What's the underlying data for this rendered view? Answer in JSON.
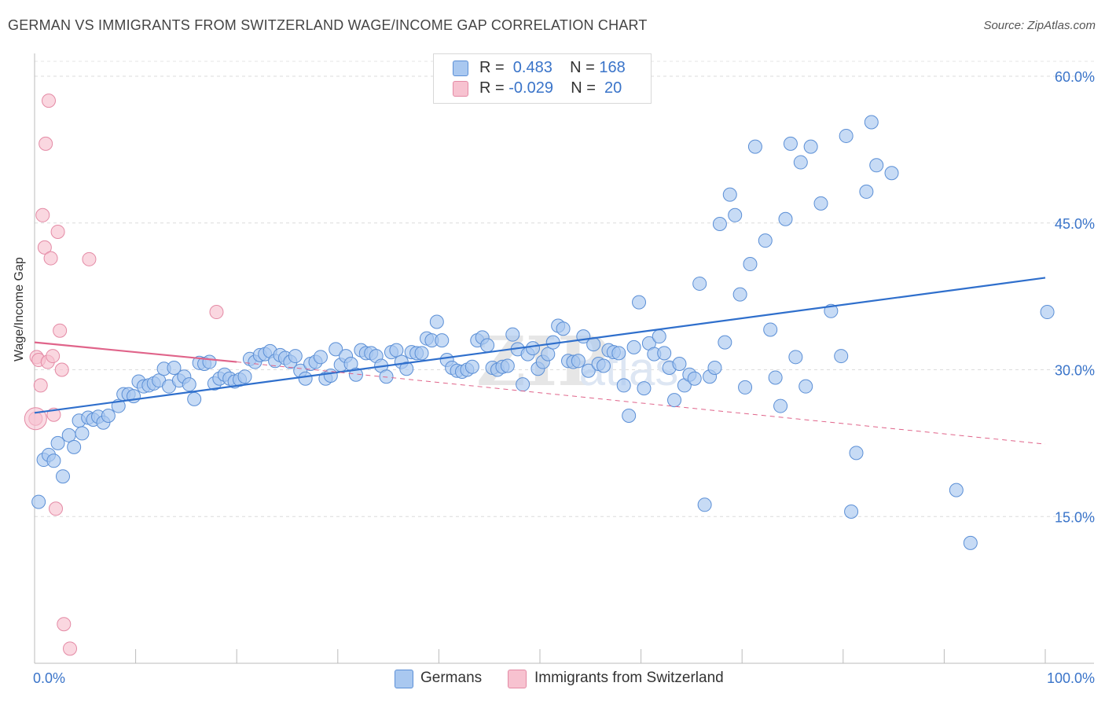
{
  "title": "GERMAN VS IMMIGRANTS FROM SWITZERLAND WAGE/INCOME GAP CORRELATION CHART",
  "source": "Source: ZipAtlas.com",
  "legend": {
    "rows": [
      {
        "r_label": "R = ",
        "r_value": " 0.483",
        "n_label": "N = ",
        "n_value": "168"
      },
      {
        "r_label": "R = ",
        "r_value": "-0.029",
        "n_label": "N = ",
        "n_value": " 20"
      }
    ]
  },
  "bottom_legend": [
    "Germans",
    "Immigrants from Switzerland"
  ],
  "colors": {
    "blue_fill": "#a9c8f0",
    "blue_stroke": "#5b8fd6",
    "blue_line": "#2f6fcc",
    "pink_fill": "#f7c2d0",
    "pink_stroke": "#e48aa5",
    "pink_line": "#e0648a",
    "axis_text": "#3a74c9"
  },
  "chart_data": {
    "type": "scatter",
    "title": "GERMAN VS IMMIGRANTS FROM SWITZERLAND WAGE/INCOME GAP CORRELATION CHART",
    "xlabel": "",
    "ylabel": "Wage/Income Gap",
    "xlim": [
      0,
      100
    ],
    "ylim": [
      0,
      60
    ],
    "x_tick_labels": [
      "0.0%",
      "100.0%"
    ],
    "y_ticks": [
      15,
      30,
      45,
      60
    ],
    "y_tick_labels": [
      "15.0%",
      "30.0%",
      "45.0%",
      "60.0%"
    ],
    "grid": true,
    "legend_position": "top-center",
    "series": [
      {
        "name": "Germans",
        "points": [
          [
            0.4,
            16.5
          ],
          [
            0.9,
            20.8
          ],
          [
            1.4,
            21.3
          ],
          [
            1.9,
            20.7
          ],
          [
            2.3,
            22.5
          ],
          [
            2.8,
            19.1
          ],
          [
            3.4,
            23.3
          ],
          [
            3.9,
            22.1
          ],
          [
            4.4,
            24.8
          ],
          [
            4.7,
            23.5
          ],
          [
            5.3,
            25.1
          ],
          [
            5.8,
            24.9
          ],
          [
            6.3,
            25.2
          ],
          [
            6.8,
            24.6
          ],
          [
            7.3,
            25.3
          ],
          [
            8.3,
            26.3
          ],
          [
            8.8,
            27.5
          ],
          [
            9.3,
            27.5
          ],
          [
            9.8,
            27.3
          ],
          [
            10.3,
            28.8
          ],
          [
            10.8,
            28.3
          ],
          [
            11.3,
            28.4
          ],
          [
            11.8,
            28.6
          ],
          [
            12.3,
            28.9
          ],
          [
            12.8,
            30.1
          ],
          [
            13.3,
            28.3
          ],
          [
            13.8,
            30.2
          ],
          [
            14.3,
            28.9
          ],
          [
            14.8,
            29.3
          ],
          [
            15.3,
            28.5
          ],
          [
            15.8,
            27.0
          ],
          [
            16.3,
            30.7
          ],
          [
            16.8,
            30.6
          ],
          [
            17.3,
            30.8
          ],
          [
            17.8,
            28.6
          ],
          [
            18.3,
            29.1
          ],
          [
            18.8,
            29.5
          ],
          [
            19.3,
            29.1
          ],
          [
            19.8,
            28.8
          ],
          [
            20.3,
            29.0
          ],
          [
            20.8,
            29.3
          ],
          [
            21.3,
            31.1
          ],
          [
            21.8,
            30.8
          ],
          [
            22.3,
            31.5
          ],
          [
            22.8,
            31.6
          ],
          [
            23.3,
            31.9
          ],
          [
            23.8,
            30.9
          ],
          [
            24.3,
            31.5
          ],
          [
            24.8,
            31.2
          ],
          [
            25.3,
            30.8
          ],
          [
            25.8,
            31.4
          ],
          [
            26.3,
            29.9
          ],
          [
            26.8,
            29.1
          ],
          [
            27.3,
            30.6
          ],
          [
            27.8,
            30.8
          ],
          [
            28.3,
            31.3
          ],
          [
            28.8,
            29.1
          ],
          [
            29.3,
            29.4
          ],
          [
            29.8,
            32.1
          ],
          [
            30.3,
            30.5
          ],
          [
            30.8,
            31.4
          ],
          [
            31.3,
            30.6
          ],
          [
            31.8,
            29.5
          ],
          [
            32.3,
            32.0
          ],
          [
            32.8,
            31.7
          ],
          [
            33.3,
            31.7
          ],
          [
            33.8,
            31.4
          ],
          [
            34.3,
            30.4
          ],
          [
            34.8,
            29.3
          ],
          [
            35.3,
            31.8
          ],
          [
            35.8,
            32.0
          ],
          [
            36.3,
            30.8
          ],
          [
            36.8,
            30.1
          ],
          [
            37.3,
            31.8
          ],
          [
            37.8,
            31.7
          ],
          [
            38.3,
            31.7
          ],
          [
            38.8,
            33.2
          ],
          [
            39.3,
            33.0
          ],
          [
            39.8,
            34.9
          ],
          [
            40.3,
            33.0
          ],
          [
            40.8,
            31.0
          ],
          [
            41.3,
            30.2
          ],
          [
            41.8,
            29.9
          ],
          [
            42.3,
            29.8
          ],
          [
            42.8,
            30.0
          ],
          [
            43.3,
            30.3
          ],
          [
            43.8,
            33.0
          ],
          [
            44.3,
            33.3
          ],
          [
            44.8,
            32.5
          ],
          [
            45.3,
            30.2
          ],
          [
            45.8,
            30.0
          ],
          [
            46.3,
            30.3
          ],
          [
            46.8,
            30.4
          ],
          [
            47.3,
            33.6
          ],
          [
            47.8,
            32.1
          ],
          [
            48.3,
            28.5
          ],
          [
            48.8,
            31.6
          ],
          [
            49.3,
            32.2
          ],
          [
            49.8,
            30.1
          ],
          [
            50.3,
            30.8
          ],
          [
            50.8,
            31.6
          ],
          [
            51.3,
            32.8
          ],
          [
            51.8,
            34.5
          ],
          [
            52.3,
            34.2
          ],
          [
            52.8,
            30.9
          ],
          [
            53.3,
            30.8
          ],
          [
            53.8,
            30.9
          ],
          [
            54.3,
            33.4
          ],
          [
            54.8,
            29.9
          ],
          [
            55.3,
            32.6
          ],
          [
            55.8,
            30.6
          ],
          [
            56.3,
            30.4
          ],
          [
            56.8,
            32.0
          ],
          [
            57.3,
            31.8
          ],
          [
            57.8,
            31.7
          ],
          [
            58.3,
            28.4
          ],
          [
            58.8,
            25.3
          ],
          [
            59.3,
            32.3
          ],
          [
            59.8,
            36.9
          ],
          [
            60.3,
            28.1
          ],
          [
            60.8,
            32.7
          ],
          [
            61.3,
            31.6
          ],
          [
            61.8,
            33.4
          ],
          [
            62.3,
            31.7
          ],
          [
            62.8,
            30.2
          ],
          [
            63.3,
            26.9
          ],
          [
            63.8,
            30.6
          ],
          [
            64.3,
            28.4
          ],
          [
            64.8,
            29.5
          ],
          [
            65.3,
            29.1
          ],
          [
            65.8,
            38.8
          ],
          [
            66.3,
            16.2
          ],
          [
            66.8,
            29.3
          ],
          [
            67.3,
            30.2
          ],
          [
            67.8,
            44.9
          ],
          [
            68.3,
            32.8
          ],
          [
            68.8,
            47.9
          ],
          [
            69.3,
            45.8
          ],
          [
            69.8,
            37.7
          ],
          [
            70.3,
            28.2
          ],
          [
            70.8,
            40.8
          ],
          [
            71.3,
            52.8
          ],
          [
            72.3,
            43.2
          ],
          [
            72.8,
            34.1
          ],
          [
            73.3,
            29.2
          ],
          [
            73.8,
            26.3
          ],
          [
            74.3,
            45.4
          ],
          [
            74.8,
            53.1
          ],
          [
            75.3,
            31.3
          ],
          [
            75.8,
            51.2
          ],
          [
            76.3,
            28.3
          ],
          [
            76.8,
            52.8
          ],
          [
            77.8,
            47.0
          ],
          [
            78.8,
            36.0
          ],
          [
            79.8,
            31.4
          ],
          [
            80.3,
            53.9
          ],
          [
            80.8,
            15.5
          ],
          [
            81.3,
            21.5
          ],
          [
            82.3,
            48.2
          ],
          [
            82.8,
            55.3
          ],
          [
            83.3,
            50.9
          ],
          [
            84.8,
            50.1
          ],
          [
            91.2,
            17.7
          ],
          [
            92.6,
            12.3
          ],
          [
            100.2,
            35.9
          ]
        ]
      },
      {
        "name": "Immigrants from Switzerland",
        "points": [
          [
            0.1,
            25.0
          ],
          [
            0.2,
            31.3
          ],
          [
            0.4,
            31.0
          ],
          [
            0.6,
            28.4
          ],
          [
            0.8,
            45.8
          ],
          [
            1.0,
            42.5
          ],
          [
            1.1,
            53.1
          ],
          [
            1.3,
            30.8
          ],
          [
            1.4,
            57.5
          ],
          [
            1.6,
            41.4
          ],
          [
            1.8,
            31.4
          ],
          [
            1.9,
            25.4
          ],
          [
            2.1,
            15.8
          ],
          [
            2.3,
            44.1
          ],
          [
            2.5,
            34.0
          ],
          [
            2.7,
            30.0
          ],
          [
            2.9,
            4.0
          ],
          [
            3.5,
            1.5
          ],
          [
            5.4,
            41.3
          ],
          [
            18.0,
            35.9
          ]
        ]
      }
    ],
    "trend_lines": [
      {
        "series": "Germans",
        "x": [
          0,
          100
        ],
        "y": [
          25.6,
          39.4
        ],
        "style": "solid"
      },
      {
        "series": "Immigrants from Switzerland",
        "x": [
          0,
          20
        ],
        "y": [
          32.8,
          30.8
        ],
        "style": "solid"
      },
      {
        "series": "Immigrants from Switzerland",
        "x": [
          20,
          100
        ],
        "y": [
          30.8,
          22.4
        ],
        "style": "dashed"
      }
    ]
  }
}
